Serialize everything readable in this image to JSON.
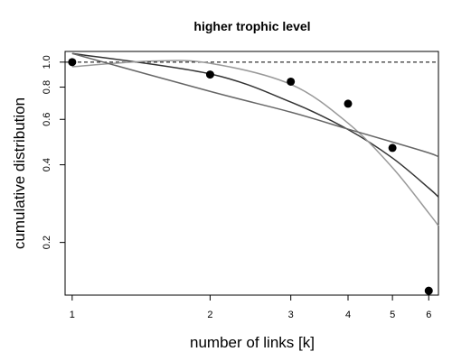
{
  "chart_data": {
    "type": "scatter",
    "title": "higher trophic level",
    "xlabel": "number of links [k]",
    "ylabel": "cumulative distribution",
    "x_scale": "log",
    "y_scale": "log",
    "xlim": [
      0.965,
      6.3
    ],
    "ylim": [
      0.125,
      1.1
    ],
    "x_ticks": [
      1,
      2,
      3,
      4,
      5,
      6
    ],
    "x_tick_labels": [
      "1",
      "2",
      "3",
      "4",
      "5",
      "6"
    ],
    "y_ticks": [
      0.2,
      0.4,
      0.6,
      0.8,
      1.0
    ],
    "y_tick_labels": [
      "0.2",
      "0.4",
      "0.6",
      "0.8",
      "1.0"
    ],
    "reference_line": {
      "y": 1.0,
      "style": "dashed"
    },
    "points": {
      "x": [
        1,
        2,
        3,
        4,
        5,
        6
      ],
      "y": [
        1.0,
        0.895,
        0.84,
        0.69,
        0.465,
        0.13
      ],
      "color": "#000000"
    },
    "fit_lines": [
      {
        "x": [
          1,
          2,
          3,
          4,
          5,
          6,
          6.3
        ],
        "y": [
          1.08,
          0.9,
          0.7,
          0.548,
          0.425,
          0.325,
          0.3
        ],
        "color": "#333333"
      },
      {
        "x": [
          1,
          1.5,
          2,
          3,
          4,
          5,
          6,
          6.3
        ],
        "y": [
          0.96,
          1.01,
          0.99,
          0.82,
          0.58,
          0.39,
          0.26,
          0.232
        ],
        "color": "#999999"
      },
      {
        "x": [
          1,
          2,
          3,
          4,
          5,
          6,
          6.3
        ],
        "y": [
          1.08,
          0.77,
          0.64,
          0.55,
          0.49,
          0.445,
          0.43
        ],
        "color": "#666666"
      }
    ]
  }
}
